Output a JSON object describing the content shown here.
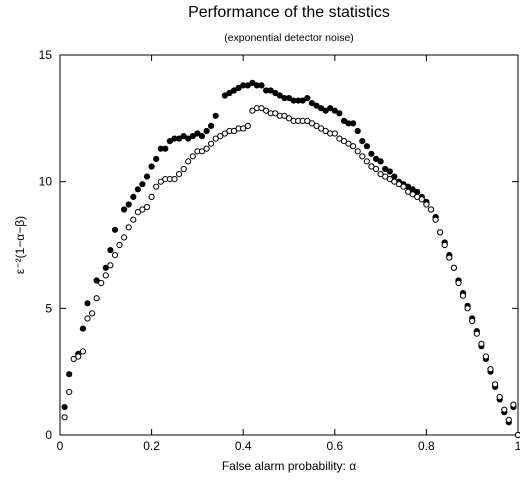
{
  "chart_data": {
    "type": "scatter",
    "title": "Performance of the statistics",
    "subtitle": "(exponential detector noise)",
    "xlabel": "False alarm probability: α",
    "ylabel": "ε⁻²(1−α−β)",
    "xlim": [
      0,
      1
    ],
    "ylim": [
      0,
      15
    ],
    "xticks": [
      0,
      0.2,
      0.4,
      0.6,
      0.8,
      1
    ],
    "xtick_labels": [
      "0",
      "0.2",
      "0.4",
      "0.6",
      "0.8",
      "1"
    ],
    "yticks": [
      0,
      5,
      10,
      15
    ],
    "ytick_labels": [
      "0",
      "5",
      "10",
      "15"
    ],
    "grid": false,
    "legend": "none",
    "series": [
      {
        "marker": "filled-circle",
        "color": "#000000",
        "points": [
          [
            0.01,
            1.1
          ],
          [
            0.02,
            2.4
          ],
          [
            0.04,
            3.2
          ],
          [
            0.05,
            4.2
          ],
          [
            0.06,
            5.2
          ],
          [
            0.08,
            6.1
          ],
          [
            0.1,
            6.6
          ],
          [
            0.11,
            7.3
          ],
          [
            0.12,
            8.1
          ],
          [
            0.14,
            8.9
          ],
          [
            0.15,
            9.1
          ],
          [
            0.16,
            9.4
          ],
          [
            0.17,
            9.7
          ],
          [
            0.18,
            9.9
          ],
          [
            0.19,
            10.2
          ],
          [
            0.2,
            10.6
          ],
          [
            0.21,
            10.9
          ],
          [
            0.22,
            11.3
          ],
          [
            0.23,
            11.3
          ],
          [
            0.24,
            11.6
          ],
          [
            0.25,
            11.7
          ],
          [
            0.26,
            11.7
          ],
          [
            0.27,
            11.8
          ],
          [
            0.28,
            11.7
          ],
          [
            0.29,
            11.8
          ],
          [
            0.3,
            11.9
          ],
          [
            0.31,
            11.8
          ],
          [
            0.32,
            12.0
          ],
          [
            0.33,
            12.2
          ],
          [
            0.34,
            12.6
          ],
          [
            0.36,
            13.4
          ],
          [
            0.37,
            13.5
          ],
          [
            0.38,
            13.6
          ],
          [
            0.39,
            13.7
          ],
          [
            0.4,
            13.8
          ],
          [
            0.41,
            13.8
          ],
          [
            0.42,
            13.9
          ],
          [
            0.43,
            13.8
          ],
          [
            0.44,
            13.8
          ],
          [
            0.45,
            13.6
          ],
          [
            0.46,
            13.6
          ],
          [
            0.47,
            13.5
          ],
          [
            0.48,
            13.4
          ],
          [
            0.49,
            13.3
          ],
          [
            0.5,
            13.3
          ],
          [
            0.51,
            13.2
          ],
          [
            0.52,
            13.2
          ],
          [
            0.53,
            13.2
          ],
          [
            0.54,
            13.3
          ],
          [
            0.55,
            13.1
          ],
          [
            0.56,
            13.0
          ],
          [
            0.57,
            12.9
          ],
          [
            0.58,
            12.8
          ],
          [
            0.59,
            12.9
          ],
          [
            0.6,
            12.8
          ],
          [
            0.61,
            12.7
          ],
          [
            0.62,
            12.4
          ],
          [
            0.63,
            12.3
          ],
          [
            0.64,
            12.3
          ],
          [
            0.65,
            12.0
          ],
          [
            0.66,
            11.6
          ],
          [
            0.67,
            11.4
          ],
          [
            0.68,
            11.1
          ],
          [
            0.69,
            10.9
          ],
          [
            0.7,
            10.8
          ],
          [
            0.71,
            10.5
          ],
          [
            0.72,
            10.4
          ],
          [
            0.73,
            10.2
          ],
          [
            0.74,
            10.0
          ],
          [
            0.75,
            9.9
          ],
          [
            0.76,
            9.8
          ],
          [
            0.77,
            9.7
          ],
          [
            0.78,
            9.6
          ],
          [
            0.79,
            9.4
          ],
          [
            0.8,
            9.2
          ],
          [
            0.81,
            8.9
          ],
          [
            0.82,
            8.6
          ],
          [
            0.83,
            8.0
          ],
          [
            0.84,
            7.6
          ],
          [
            0.85,
            7.1
          ],
          [
            0.86,
            6.6
          ],
          [
            0.87,
            6.1
          ],
          [
            0.88,
            5.6
          ],
          [
            0.89,
            5.1
          ],
          [
            0.9,
            4.6
          ],
          [
            0.91,
            4.1
          ],
          [
            0.92,
            3.5
          ],
          [
            0.93,
            3.0
          ],
          [
            0.94,
            2.5
          ],
          [
            0.95,
            1.9
          ],
          [
            0.96,
            1.4
          ],
          [
            0.97,
            0.9
          ],
          [
            0.98,
            0.5
          ],
          [
            0.99,
            1.1
          ],
          [
            1.0,
            0.0
          ]
        ]
      },
      {
        "marker": "open-circle",
        "color": "#000000",
        "points": [
          [
            0.01,
            0.7
          ],
          [
            0.02,
            1.7
          ],
          [
            0.03,
            3.0
          ],
          [
            0.04,
            3.1
          ],
          [
            0.05,
            3.3
          ],
          [
            0.06,
            4.6
          ],
          [
            0.07,
            4.8
          ],
          [
            0.08,
            5.4
          ],
          [
            0.09,
            6.0
          ],
          [
            0.1,
            6.3
          ],
          [
            0.11,
            6.7
          ],
          [
            0.12,
            7.1
          ],
          [
            0.13,
            7.5
          ],
          [
            0.14,
            7.8
          ],
          [
            0.15,
            8.2
          ],
          [
            0.16,
            8.5
          ],
          [
            0.17,
            8.8
          ],
          [
            0.18,
            8.9
          ],
          [
            0.19,
            9.0
          ],
          [
            0.2,
            9.4
          ],
          [
            0.21,
            9.8
          ],
          [
            0.22,
            10.0
          ],
          [
            0.23,
            10.1
          ],
          [
            0.24,
            10.1
          ],
          [
            0.25,
            10.1
          ],
          [
            0.26,
            10.3
          ],
          [
            0.27,
            10.5
          ],
          [
            0.28,
            10.8
          ],
          [
            0.29,
            11.0
          ],
          [
            0.3,
            11.2
          ],
          [
            0.31,
            11.2
          ],
          [
            0.32,
            11.3
          ],
          [
            0.33,
            11.5
          ],
          [
            0.34,
            11.7
          ],
          [
            0.35,
            11.8
          ],
          [
            0.36,
            11.9
          ],
          [
            0.37,
            12.0
          ],
          [
            0.38,
            12.0
          ],
          [
            0.39,
            12.1
          ],
          [
            0.4,
            12.1
          ],
          [
            0.41,
            12.2
          ],
          [
            0.42,
            12.8
          ],
          [
            0.43,
            12.9
          ],
          [
            0.44,
            12.9
          ],
          [
            0.45,
            12.8
          ],
          [
            0.46,
            12.7
          ],
          [
            0.47,
            12.7
          ],
          [
            0.48,
            12.6
          ],
          [
            0.49,
            12.6
          ],
          [
            0.5,
            12.5
          ],
          [
            0.51,
            12.4
          ],
          [
            0.52,
            12.4
          ],
          [
            0.53,
            12.4
          ],
          [
            0.54,
            12.4
          ],
          [
            0.55,
            12.3
          ],
          [
            0.56,
            12.2
          ],
          [
            0.57,
            12.1
          ],
          [
            0.58,
            12.0
          ],
          [
            0.59,
            11.9
          ],
          [
            0.6,
            11.9
          ],
          [
            0.61,
            11.7
          ],
          [
            0.62,
            11.6
          ],
          [
            0.63,
            11.5
          ],
          [
            0.64,
            11.4
          ],
          [
            0.65,
            11.2
          ],
          [
            0.66,
            11.0
          ],
          [
            0.67,
            10.8
          ],
          [
            0.68,
            10.6
          ],
          [
            0.69,
            10.5
          ],
          [
            0.7,
            10.3
          ],
          [
            0.71,
            10.2
          ],
          [
            0.72,
            10.1
          ],
          [
            0.73,
            10.0
          ],
          [
            0.74,
            9.9
          ],
          [
            0.75,
            9.8
          ],
          [
            0.76,
            9.6
          ],
          [
            0.77,
            9.5
          ],
          [
            0.78,
            9.4
          ],
          [
            0.79,
            9.3
          ],
          [
            0.8,
            9.1
          ],
          [
            0.81,
            8.9
          ],
          [
            0.82,
            8.5
          ],
          [
            0.83,
            8.0
          ],
          [
            0.84,
            7.5
          ],
          [
            0.85,
            7.0
          ],
          [
            0.86,
            6.6
          ],
          [
            0.87,
            6.0
          ],
          [
            0.88,
            5.5
          ],
          [
            0.89,
            5.0
          ],
          [
            0.9,
            4.5
          ],
          [
            0.91,
            4.0
          ],
          [
            0.92,
            3.6
          ],
          [
            0.93,
            3.1
          ],
          [
            0.94,
            2.6
          ],
          [
            0.95,
            2.0
          ],
          [
            0.96,
            1.5
          ],
          [
            0.97,
            1.0
          ],
          [
            0.98,
            0.6
          ],
          [
            0.99,
            1.2
          ],
          [
            1.0,
            0.0
          ]
        ]
      }
    ]
  }
}
